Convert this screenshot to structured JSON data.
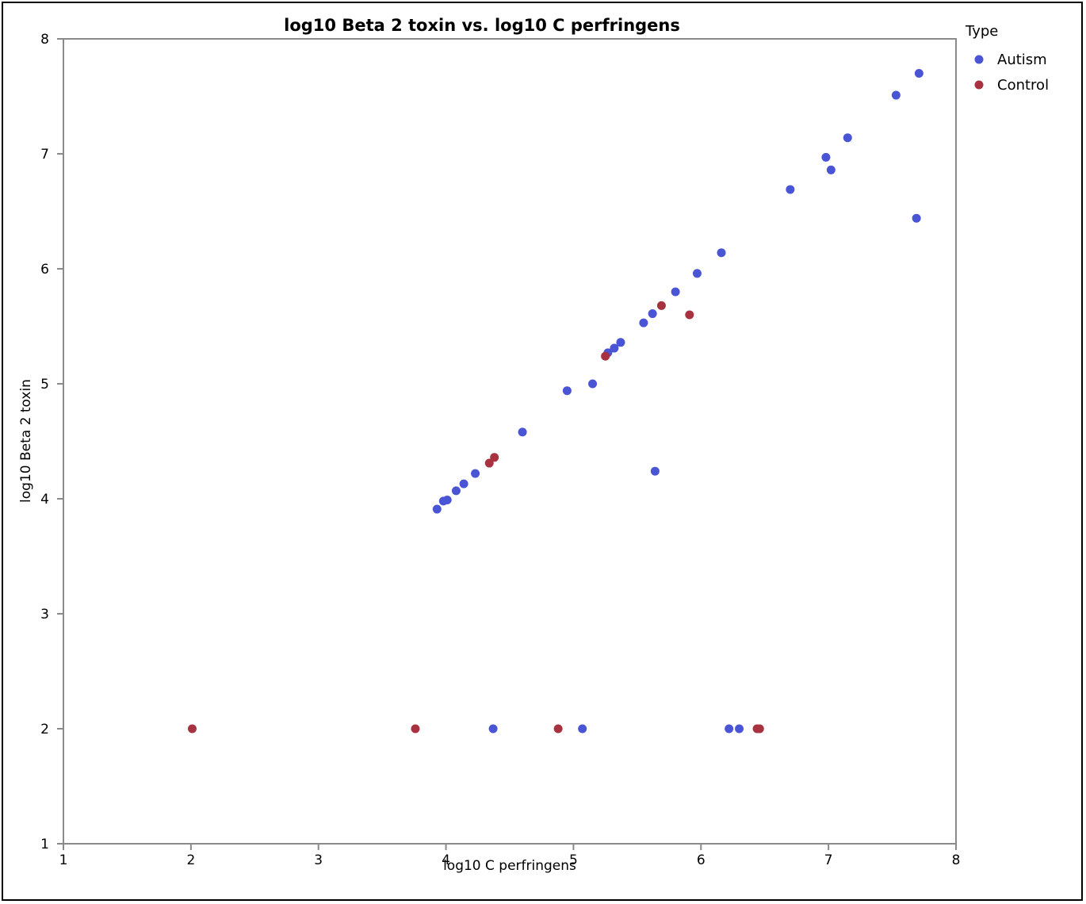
{
  "chart_data": {
    "type": "scatter",
    "title": "log10 Beta 2 toxin vs. log10 C perfringens",
    "xlabel": "log10 C perfringens",
    "ylabel": "log10 Beta 2 toxin",
    "xlim": [
      1,
      8
    ],
    "ylim": [
      1,
      8
    ],
    "xticks": [
      "1",
      "2",
      "3",
      "4",
      "5",
      "6",
      "7",
      "8"
    ],
    "yticks": [
      "1",
      "2",
      "3",
      "4",
      "5",
      "6",
      "7",
      "8"
    ],
    "grid": false,
    "legend": {
      "title": "Type",
      "placement": "right"
    },
    "series": [
      {
        "name": "Autism",
        "color": "#4a55d6",
        "points": [
          [
            3.93,
            3.91
          ],
          [
            3.98,
            3.98
          ],
          [
            4.01,
            3.99
          ],
          [
            4.08,
            4.07
          ],
          [
            4.14,
            4.13
          ],
          [
            4.23,
            4.22
          ],
          [
            4.6,
            4.58
          ],
          [
            4.95,
            4.94
          ],
          [
            5.15,
            5.0
          ],
          [
            5.27,
            5.27
          ],
          [
            5.32,
            5.31
          ],
          [
            5.37,
            5.36
          ],
          [
            5.55,
            5.53
          ],
          [
            5.62,
            5.61
          ],
          [
            5.64,
            4.24
          ],
          [
            5.8,
            5.8
          ],
          [
            5.97,
            5.96
          ],
          [
            6.16,
            6.14
          ],
          [
            6.7,
            6.69
          ],
          [
            6.98,
            6.97
          ],
          [
            7.02,
            6.86
          ],
          [
            7.15,
            7.14
          ],
          [
            7.53,
            7.51
          ],
          [
            7.69,
            6.44
          ],
          [
            7.71,
            7.7
          ],
          [
            4.37,
            2.0
          ],
          [
            5.07,
            2.0
          ],
          [
            6.22,
            2.0
          ],
          [
            6.3,
            2.0
          ]
        ]
      },
      {
        "name": "Control",
        "color": "#a8323f",
        "points": [
          [
            2.01,
            2.0
          ],
          [
            3.76,
            2.0
          ],
          [
            4.88,
            2.0
          ],
          [
            6.44,
            2.0
          ],
          [
            6.46,
            2.0
          ],
          [
            4.34,
            4.31
          ],
          [
            4.38,
            4.36
          ],
          [
            5.25,
            5.24
          ],
          [
            5.69,
            5.68
          ],
          [
            5.91,
            5.6
          ]
        ]
      }
    ]
  }
}
